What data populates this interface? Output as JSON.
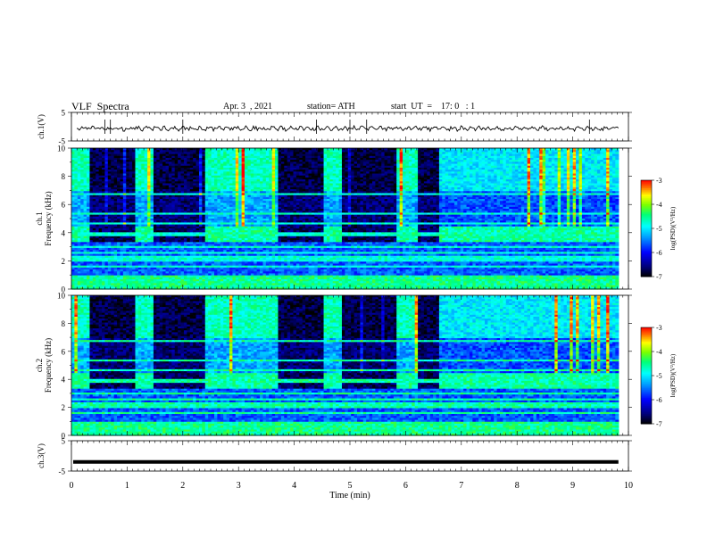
{
  "header": {
    "title": "VLF  Spectra",
    "date": "Apr. 3  , 2021",
    "station": "station= ATH",
    "start_ut": "start  UT  =    17: 0   : 1"
  },
  "chart_data": {
    "type": "heatmap",
    "xlabel": "Time  (min)",
    "x_ticks": [
      "0",
      "1",
      "2",
      "3",
      "4",
      "5",
      "6",
      "7",
      "8",
      "9",
      "10"
    ],
    "xlim": [
      0,
      10
    ],
    "data_end_min": 9.82,
    "panels": [
      {
        "id": "ch1-waveform",
        "kind": "waveform",
        "ylabel": "ch.1(V)",
        "y_ticks": [
          "5",
          "-5"
        ],
        "ylim": [
          -5,
          5
        ]
      },
      {
        "id": "ch1-spectrogram",
        "kind": "spectrogram",
        "ylabel_line1": "ch.1",
        "ylabel_line2": "Frequency  (kHz)",
        "y_ticks": [
          "0",
          "2",
          "4",
          "6",
          "8",
          "10"
        ],
        "ylim": [
          0,
          10
        ],
        "colorbar": {
          "label": "log(PSD)(V²/Hz)",
          "ticks": [
            "-3",
            "-4",
            "-5",
            "-6",
            "-7"
          ],
          "range": [
            -7,
            -3
          ]
        }
      },
      {
        "id": "ch2-spectrogram",
        "kind": "spectrogram",
        "ylabel_line1": "ch.2",
        "ylabel_line2": "Frequency  (kHz)",
        "y_ticks": [
          "0",
          "2",
          "4",
          "6",
          "8",
          "10"
        ],
        "ylim": [
          0,
          10
        ],
        "colorbar": {
          "label": "log(PSD)(V²/Hz)",
          "ticks": [
            "-3",
            "-4",
            "-5",
            "-6",
            "-7"
          ],
          "range": [
            -7,
            -3
          ]
        }
      },
      {
        "id": "ch3-waveform",
        "kind": "waveform",
        "ylabel": "ch.3(V)",
        "y_ticks": [
          "5",
          "-5"
        ],
        "ylim": [
          -5,
          5
        ],
        "level": -2
      }
    ],
    "quiet_intervals_min": [
      [
        0.33,
        1.15
      ],
      [
        1.48,
        2.4
      ],
      [
        3.72,
        4.52
      ],
      [
        4.85,
        5.85
      ],
      [
        6.2,
        6.58
      ]
    ],
    "narrowband_lines_khz": [
      0.4,
      0.9,
      1.6,
      2.1,
      2.3,
      2.6,
      3.0,
      3.9,
      4.7,
      5.3,
      6.7
    ]
  }
}
